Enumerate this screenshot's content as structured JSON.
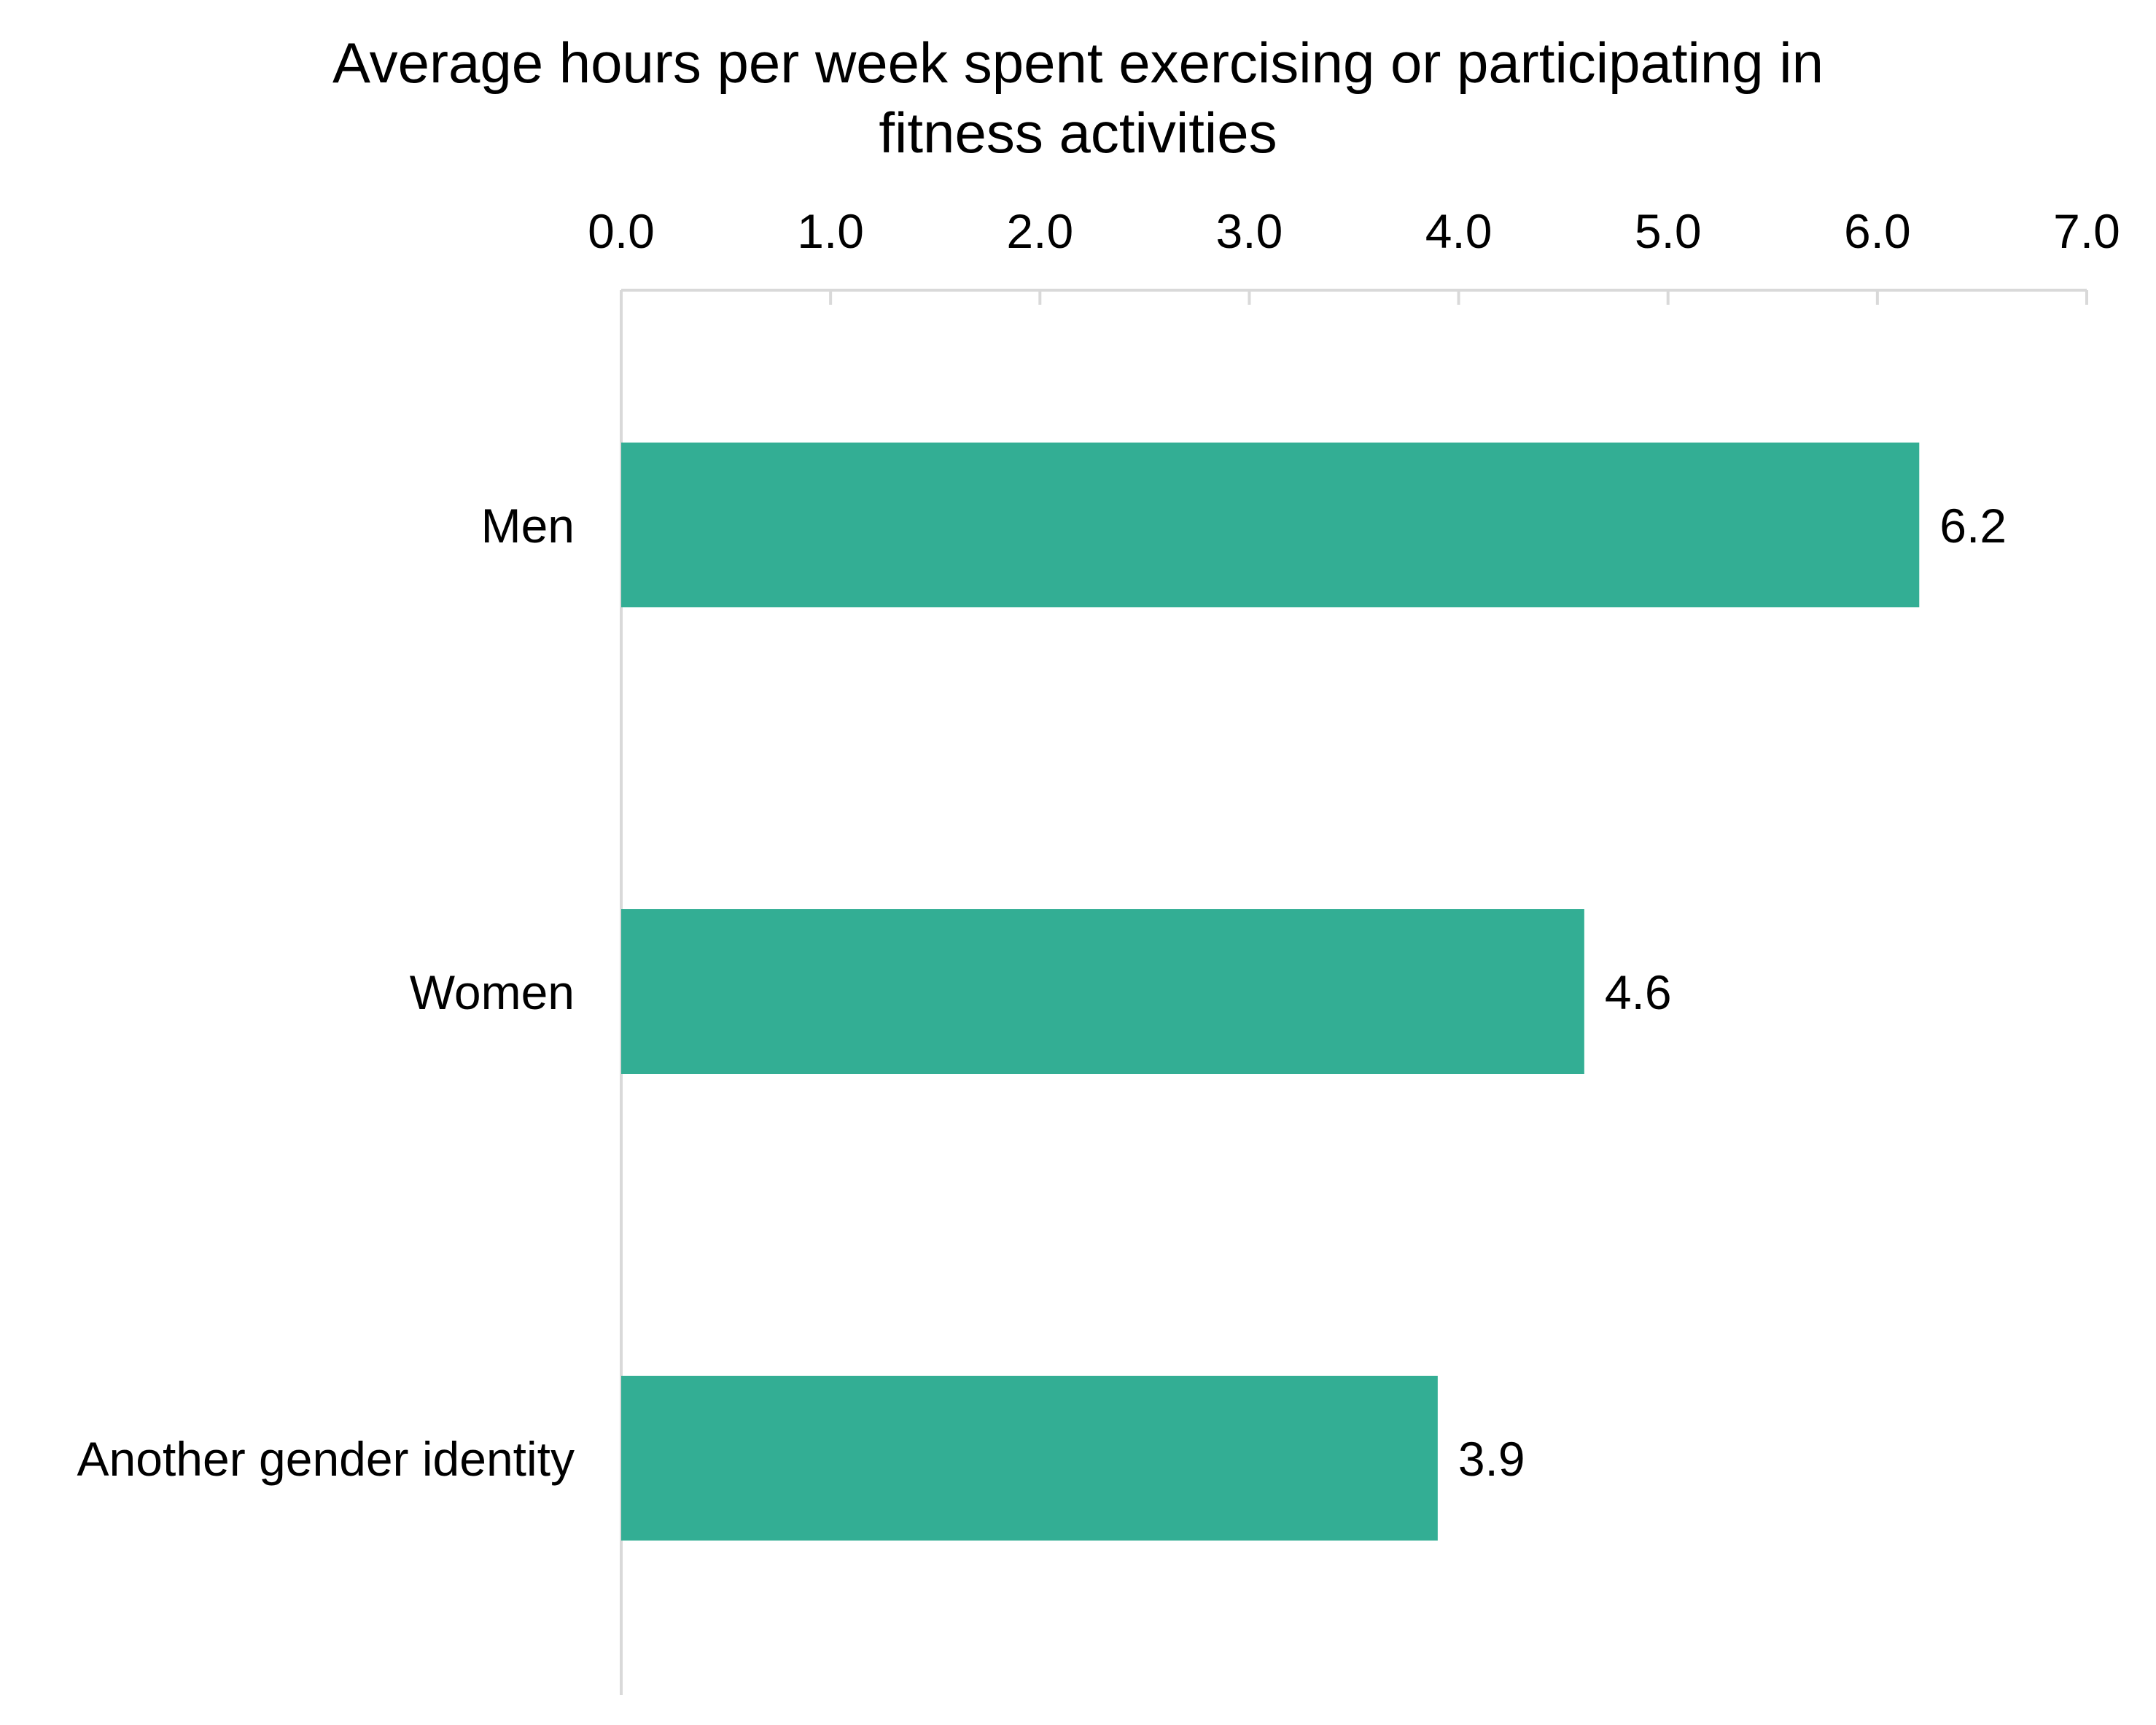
{
  "chart_data": {
    "type": "bar",
    "orientation": "horizontal",
    "title": "Average hours per week spent exercising or participating in\nfitness activities",
    "xlabel": "",
    "ylabel": "",
    "categories": [
      "Men",
      "Women",
      "Another gender identity"
    ],
    "values": [
      6.2,
      4.6,
      3.9
    ],
    "data_labels": [
      "6.2",
      "4.6",
      "3.9"
    ],
    "xlim": [
      0,
      7
    ],
    "ticks": [
      "0.0",
      "1.0",
      "2.0",
      "3.0",
      "4.0",
      "5.0",
      "6.0",
      "7.0"
    ],
    "x_axis_position": "top",
    "grid": false,
    "legend": "none",
    "bar_color": "#33ae94",
    "axis_color": "#d9d9d9"
  }
}
